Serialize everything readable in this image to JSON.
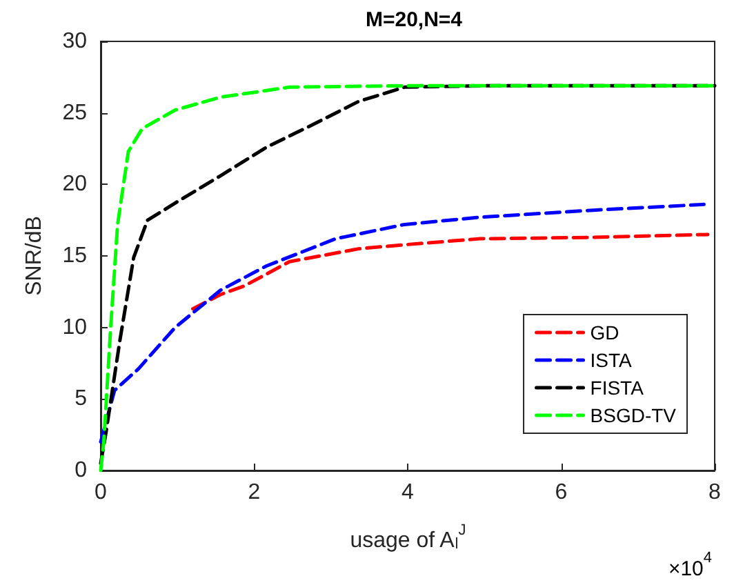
{
  "chart_data": {
    "type": "line",
    "title": "M=20,N=4",
    "xlabel": "usage of A$_{l}$$^{J}$",
    "ylabel": "SNR/dB",
    "annotations": [
      "×10$^{4}$"
    ],
    "xlim": [
      0,
      8
    ],
    "xticks": [
      0,
      2,
      4,
      6,
      8
    ],
    "ylim": [
      0,
      30
    ],
    "yticks": [
      0,
      5,
      10,
      15,
      20,
      25,
      30
    ],
    "grid": false,
    "legend": "bottom right",
    "marker": "none",
    "line_style": "dashed",
    "series": [
      {
        "name": "GD",
        "color": "#ff0000",
        "x": [
          1.2,
          1.56,
          1.87,
          2.46,
          3.36,
          4.0,
          4.93,
          6.42,
          7.91
        ],
        "values": [
          11.3,
          12.3,
          12.9,
          14.6,
          15.5,
          15.8,
          16.2,
          16.3,
          16.5
        ]
      },
      {
        "name": "ISTA",
        "color": "#0000ff",
        "x": [
          0,
          0.18,
          0.49,
          0.97,
          1.56,
          2.16,
          3.06,
          3.96,
          4.93,
          6.42,
          7.86
        ],
        "values": [
          2,
          5.6,
          7.1,
          10.0,
          12.6,
          14.3,
          16.2,
          17.2,
          17.7,
          18.2,
          18.6
        ]
      },
      {
        "name": "FISTA",
        "color": "#000000",
        "x": [
          0,
          0.07,
          0.25,
          0.43,
          0.61,
          0.97,
          1.56,
          2.16,
          2.77,
          3.36,
          3.96,
          5,
          8
        ],
        "values": [
          0.5,
          2.7,
          9.1,
          14.9,
          17.5,
          18.7,
          20.6,
          22.6,
          24.2,
          25.8,
          26.8,
          26.9,
          26.9
        ]
      },
      {
        "name": "BSGD-TV",
        "color": "#00ff00",
        "x": [
          0,
          0.04,
          0.13,
          0.22,
          0.36,
          0.54,
          0.97,
          1.56,
          2.46,
          4,
          8
        ],
        "values": [
          0,
          2.0,
          10.0,
          17.2,
          22.3,
          23.9,
          25.2,
          26.1,
          26.8,
          26.9,
          26.9
        ]
      }
    ]
  }
}
